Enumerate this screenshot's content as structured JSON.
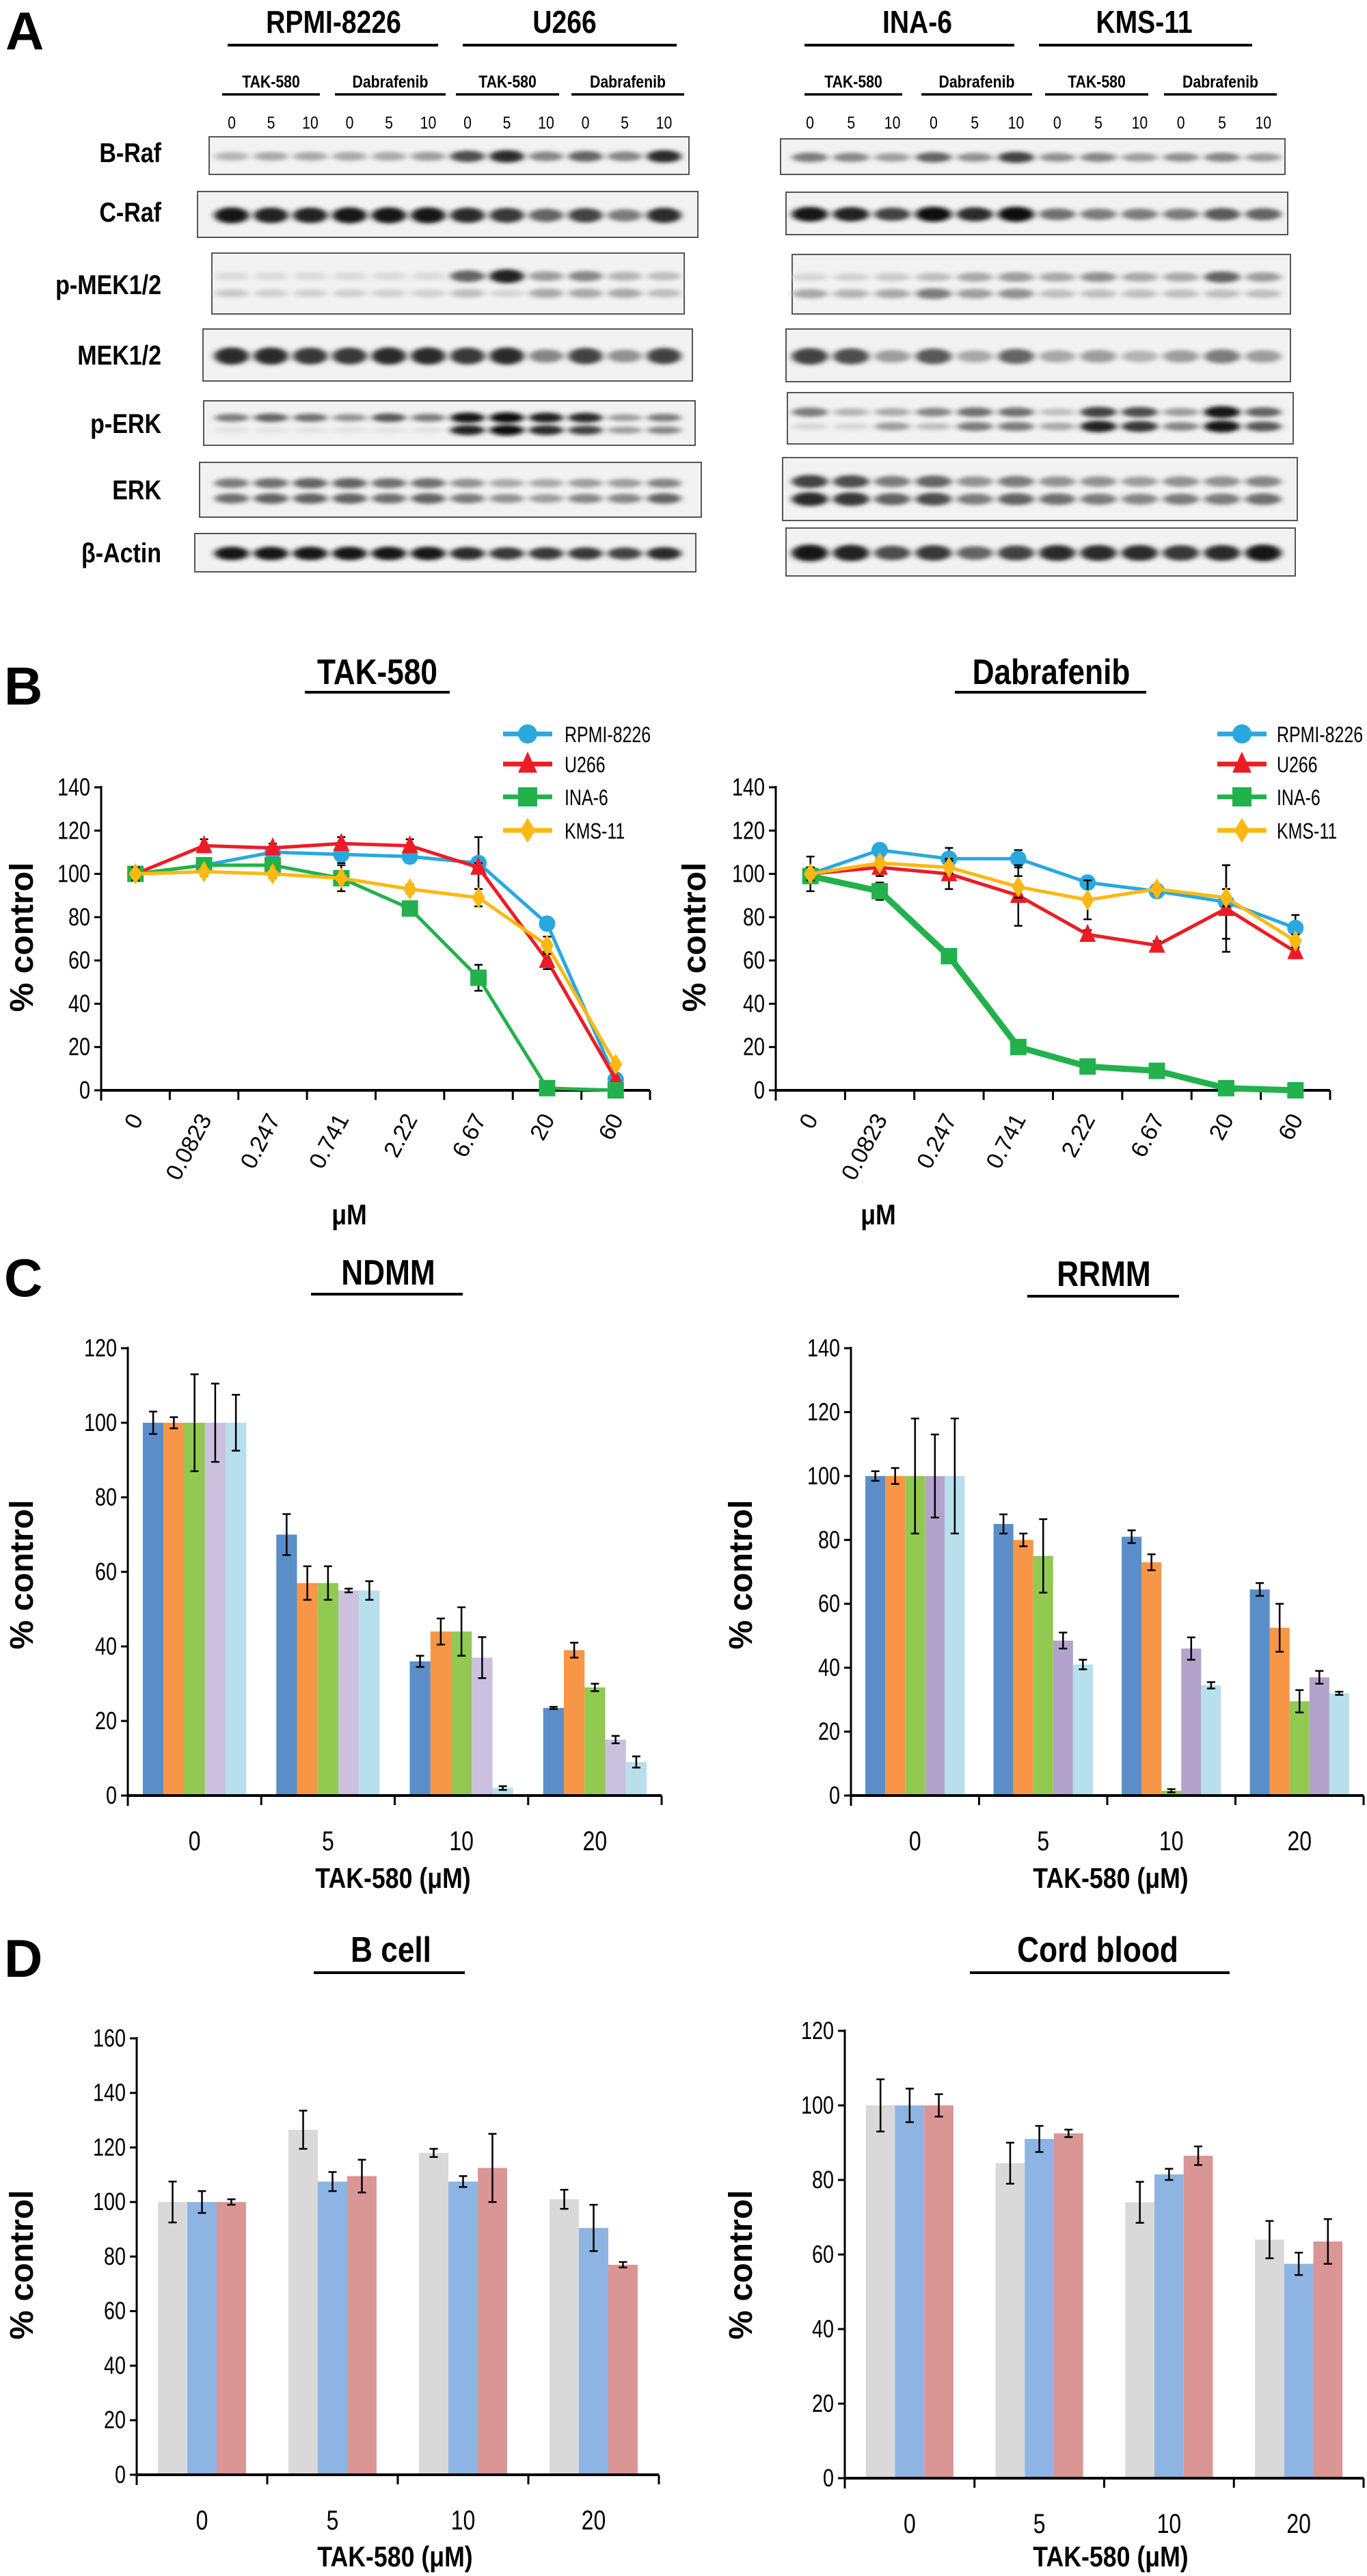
{
  "panel_labels": [
    "A",
    "B",
    "C",
    "D"
  ],
  "western_blot": {
    "cell_lines_left": [
      "RPMI-8226",
      "U266"
    ],
    "cell_lines_right": [
      "INA-6",
      "KMS-11"
    ],
    "treatments": [
      "TAK-580",
      "Dabrafenib",
      "TAK-580",
      "Dabrafenib",
      "TAK-580",
      "Dabrafenib",
      "TAK-580",
      "Dabrafenib"
    ],
    "doses": [
      "0",
      "5",
      "10"
    ],
    "rows": [
      {
        "label": "B-Raf",
        "bands": 1,
        "left": [
          [
            0.25,
            0.3,
            0.3,
            0.3,
            0.3,
            0.35,
            0.7,
            0.85,
            0.45,
            0.6,
            0.45,
            0.85
          ]
        ],
        "right": [
          [
            0.5,
            0.45,
            0.35,
            0.6,
            0.4,
            0.75,
            0.4,
            0.45,
            0.35,
            0.4,
            0.45,
            0.35
          ]
        ]
      },
      {
        "label": "C-Raf",
        "bands": 1,
        "left": [
          [
            0.95,
            0.9,
            0.9,
            0.95,
            0.95,
            0.95,
            0.85,
            0.8,
            0.6,
            0.75,
            0.5,
            0.85
          ]
        ],
        "right": [
          [
            0.95,
            0.9,
            0.75,
            0.98,
            0.85,
            0.98,
            0.55,
            0.5,
            0.5,
            0.5,
            0.65,
            0.6
          ]
        ]
      },
      {
        "label": "p-MEK1/2",
        "bands": 2,
        "left": [
          [
            0.08,
            0.08,
            0.08,
            0.08,
            0.08,
            0.08,
            0.6,
            0.9,
            0.35,
            0.45,
            0.25,
            0.2
          ],
          [
            0.15,
            0.12,
            0.12,
            0.12,
            0.12,
            0.12,
            0.2,
            0.1,
            0.3,
            0.3,
            0.3,
            0.2
          ]
        ],
        "right": [
          [
            0.1,
            0.12,
            0.15,
            0.2,
            0.3,
            0.35,
            0.3,
            0.4,
            0.3,
            0.3,
            0.6,
            0.35
          ],
          [
            0.3,
            0.25,
            0.3,
            0.5,
            0.35,
            0.4,
            0.2,
            0.2,
            0.2,
            0.2,
            0.2,
            0.2
          ]
        ]
      },
      {
        "label": "MEK1/2",
        "bands": 1,
        "left": [
          [
            0.85,
            0.85,
            0.8,
            0.8,
            0.85,
            0.85,
            0.8,
            0.85,
            0.45,
            0.75,
            0.4,
            0.75
          ]
        ],
        "right": [
          [
            0.75,
            0.7,
            0.35,
            0.65,
            0.3,
            0.6,
            0.3,
            0.35,
            0.25,
            0.35,
            0.5,
            0.35
          ]
        ]
      },
      {
        "label": "p-ERK",
        "bands": 2,
        "left": [
          [
            0.5,
            0.6,
            0.55,
            0.4,
            0.65,
            0.5,
            0.95,
            1,
            0.9,
            0.85,
            0.35,
            0.5
          ],
          [
            0.05,
            0.05,
            0.05,
            0.05,
            0.05,
            0.05,
            0.9,
            1,
            0.85,
            0.75,
            0.35,
            0.45
          ]
        ],
        "right": [
          [
            0.5,
            0.25,
            0.3,
            0.45,
            0.55,
            0.55,
            0.2,
            0.75,
            0.7,
            0.35,
            0.95,
            0.6
          ],
          [
            0.1,
            0.1,
            0.35,
            0.2,
            0.5,
            0.5,
            0.3,
            0.9,
            0.8,
            0.45,
            0.95,
            0.65
          ]
        ]
      },
      {
        "label": "ERK",
        "bands": 2,
        "left": [
          [
            0.5,
            0.55,
            0.6,
            0.6,
            0.55,
            0.55,
            0.4,
            0.3,
            0.3,
            0.35,
            0.35,
            0.45
          ],
          [
            0.55,
            0.6,
            0.6,
            0.6,
            0.55,
            0.6,
            0.5,
            0.4,
            0.35,
            0.45,
            0.45,
            0.6
          ]
        ],
        "right": [
          [
            0.75,
            0.7,
            0.5,
            0.6,
            0.4,
            0.5,
            0.4,
            0.4,
            0.35,
            0.4,
            0.4,
            0.45
          ],
          [
            0.85,
            0.8,
            0.6,
            0.7,
            0.5,
            0.6,
            0.55,
            0.5,
            0.45,
            0.5,
            0.5,
            0.55
          ]
        ]
      },
      {
        "label": "β-Actin",
        "bands": 1,
        "left": [
          [
            0.95,
            0.95,
            0.95,
            0.95,
            0.95,
            0.95,
            0.85,
            0.8,
            0.8,
            0.8,
            0.75,
            0.85
          ]
        ],
        "right": [
          [
            0.95,
            0.9,
            0.7,
            0.8,
            0.6,
            0.75,
            0.85,
            0.85,
            0.85,
            0.8,
            0.85,
            0.95
          ]
        ]
      }
    ]
  },
  "chart_data": [
    {
      "type": "line",
      "title": "TAK-580",
      "xlabel": "μM",
      "ylabel": "% control",
      "categories": [
        "0",
        "0.0823",
        "0.247",
        "0.741",
        "2.22",
        "6.67",
        "20",
        "60"
      ],
      "ylim": [
        0,
        140
      ],
      "yticks": [
        "0",
        "20",
        "40",
        "60",
        "80",
        "100",
        "120",
        "140"
      ],
      "legend_position": "top-right",
      "series": [
        {
          "name": "RPMI-8226",
          "color": "#29a8e0",
          "marker": "circle",
          "values": [
            100,
            104,
            110,
            109,
            108,
            105,
            77,
            5
          ],
          "errors": [
            2,
            2,
            2,
            4,
            3,
            12,
            3,
            1
          ]
        },
        {
          "name": "U266",
          "color": "#ed1c24",
          "marker": "triangle",
          "values": [
            100,
            113,
            112,
            114,
            113,
            103,
            60,
            5
          ],
          "errors": [
            2,
            3,
            2,
            3,
            3,
            2,
            4,
            1
          ]
        },
        {
          "name": "INA-6",
          "color": "#22b14c",
          "marker": "square",
          "values": [
            100,
            104,
            104,
            98,
            84,
            52,
            1,
            0
          ],
          "errors": [
            2,
            2,
            3,
            6,
            2,
            6,
            1,
            1
          ]
        },
        {
          "name": "KMS-11",
          "color": "#fdb813",
          "marker": "diamond",
          "values": [
            100,
            101,
            100,
            98,
            93,
            89,
            67,
            12
          ],
          "errors": [
            3,
            2,
            2,
            2,
            2,
            4,
            4,
            1
          ]
        }
      ]
    },
    {
      "type": "line",
      "title": "Dabrafenib",
      "xlabel": "μM",
      "ylabel": "% control",
      "categories": [
        "0",
        "0.0823",
        "0.247",
        "0.741",
        "2.22",
        "6.67",
        "20",
        "60"
      ],
      "ylim": [
        0,
        140
      ],
      "yticks": [
        "0",
        "20",
        "40",
        "60",
        "80",
        "100",
        "120",
        "140"
      ],
      "legend_position": "top-right",
      "series": [
        {
          "name": "RPMI-8226",
          "color": "#29a8e0",
          "marker": "circle",
          "values": [
            100,
            111,
            107,
            107,
            96,
            92,
            87,
            75
          ],
          "errors": [
            3,
            3,
            5,
            4,
            2,
            2,
            17,
            6
          ]
        },
        {
          "name": "U266",
          "color": "#ed1c24",
          "marker": "triangle",
          "values": [
            100,
            103,
            100,
            90,
            72,
            67,
            84,
            64
          ],
          "errors": [
            8,
            4,
            7,
            14,
            2,
            2,
            20,
            3
          ]
        },
        {
          "name": "INA-6",
          "color": "#22b14c",
          "marker": "square",
          "values": [
            99,
            92,
            62,
            20,
            11,
            9,
            1,
            0
          ],
          "errors": [
            2,
            4,
            2,
            2,
            2,
            2,
            1,
            1
          ]
        },
        {
          "name": "KMS-11",
          "color": "#fdb813",
          "marker": "diamond",
          "values": [
            100,
            105,
            103,
            94,
            88,
            93,
            89,
            69
          ],
          "errors": [
            3,
            2,
            3,
            5,
            9,
            2,
            4,
            3
          ]
        }
      ]
    },
    {
      "type": "bar",
      "title": "NDMM",
      "xlabel": "TAK-580 (μM)",
      "ylabel": "% control",
      "categories": [
        "0",
        "5",
        "10",
        "20"
      ],
      "ylim": [
        0,
        120
      ],
      "yticks": [
        "0",
        "20",
        "40",
        "60",
        "80",
        "100",
        "120"
      ],
      "series": [
        {
          "color": "#5b8ec9",
          "values": [
            100,
            70,
            36,
            23.5
          ],
          "errors": [
            3,
            5.5,
            1.5,
            0.3
          ]
        },
        {
          "color": "#f79646",
          "values": [
            100,
            57,
            44,
            39
          ],
          "errors": [
            1.5,
            4.5,
            3.5,
            2
          ]
        },
        {
          "color": "#92c951",
          "values": [
            100,
            57,
            44,
            29
          ],
          "errors": [
            13,
            4.5,
            6.5,
            1
          ]
        },
        {
          "color": "#cbc0de",
          "values": [
            100,
            55,
            37,
            15
          ],
          "errors": [
            10.5,
            0.5,
            5.5,
            1
          ]
        },
        {
          "color": "#b7e0ec",
          "values": [
            100,
            55,
            2,
            9
          ],
          "errors": [
            7.5,
            2.5,
            0.5,
            1.5
          ]
        }
      ]
    },
    {
      "type": "bar",
      "title": "RRMM",
      "xlabel": "TAK-580 (μM)",
      "ylabel": "% control",
      "categories": [
        "0",
        "5",
        "10",
        "20"
      ],
      "ylim": [
        0,
        140
      ],
      "yticks": [
        "0",
        "20",
        "40",
        "60",
        "80",
        "100",
        "120",
        "140"
      ],
      "series": [
        {
          "color": "#5b8ec9",
          "values": [
            100,
            85,
            81,
            64.5
          ],
          "errors": [
            1.5,
            3,
            2,
            2
          ]
        },
        {
          "color": "#f79646",
          "values": [
            100,
            80,
            73,
            52.5
          ],
          "errors": [
            2.5,
            2,
            2.5,
            7.5
          ]
        },
        {
          "color": "#92c951",
          "values": [
            100,
            75,
            1.5,
            29.5
          ],
          "errors": [
            18,
            11.5,
            0.5,
            3.5
          ]
        },
        {
          "color": "#b3a2cc",
          "values": [
            100,
            48.5,
            46,
            37
          ],
          "errors": [
            13,
            2.5,
            3.5,
            2
          ]
        },
        {
          "color": "#b7e0ec",
          "values": [
            100,
            41,
            34.5,
            32
          ],
          "errors": [
            18,
            1.5,
            1,
            0.5
          ]
        }
      ]
    },
    {
      "type": "bar",
      "title": "B cell",
      "xlabel": "TAK-580 (μM)",
      "ylabel": "% control",
      "categories": [
        "0",
        "5",
        "10",
        "20"
      ],
      "ylim": [
        0,
        160
      ],
      "yticks": [
        "0",
        "20",
        "40",
        "60",
        "80",
        "100",
        "120",
        "140",
        "160"
      ],
      "series": [
        {
          "color": "#d9d9d9",
          "values": [
            100,
            126.5,
            118,
            101
          ],
          "errors": [
            7.5,
            7,
            1.5,
            3.5
          ]
        },
        {
          "color": "#8eb4e3",
          "values": [
            100,
            107.5,
            107.5,
            90.5
          ],
          "errors": [
            4,
            3.5,
            2,
            8.5
          ]
        },
        {
          "color": "#d99694",
          "values": [
            100,
            109.5,
            112.5,
            77
          ],
          "errors": [
            1,
            6,
            12.5,
            1
          ]
        }
      ]
    },
    {
      "type": "bar",
      "title": "Cord blood",
      "xlabel": "TAK-580 (μM)",
      "ylabel": "% control",
      "categories": [
        "0",
        "5",
        "10",
        "20"
      ],
      "ylim": [
        0,
        120
      ],
      "yticks": [
        "0",
        "20",
        "40",
        "60",
        "80",
        "100",
        "120"
      ],
      "series": [
        {
          "color": "#d9d9d9",
          "values": [
            100,
            84.5,
            74,
            64
          ],
          "errors": [
            7,
            5.5,
            5.5,
            5
          ]
        },
        {
          "color": "#8eb4e3",
          "values": [
            100,
            91,
            81.5,
            57.5
          ],
          "errors": [
            4.5,
            3.5,
            1.5,
            3
          ]
        },
        {
          "color": "#d99694",
          "values": [
            100,
            92.5,
            86.5,
            63.5
          ],
          "errors": [
            3,
            1,
            2.5,
            6
          ]
        }
      ]
    }
  ]
}
